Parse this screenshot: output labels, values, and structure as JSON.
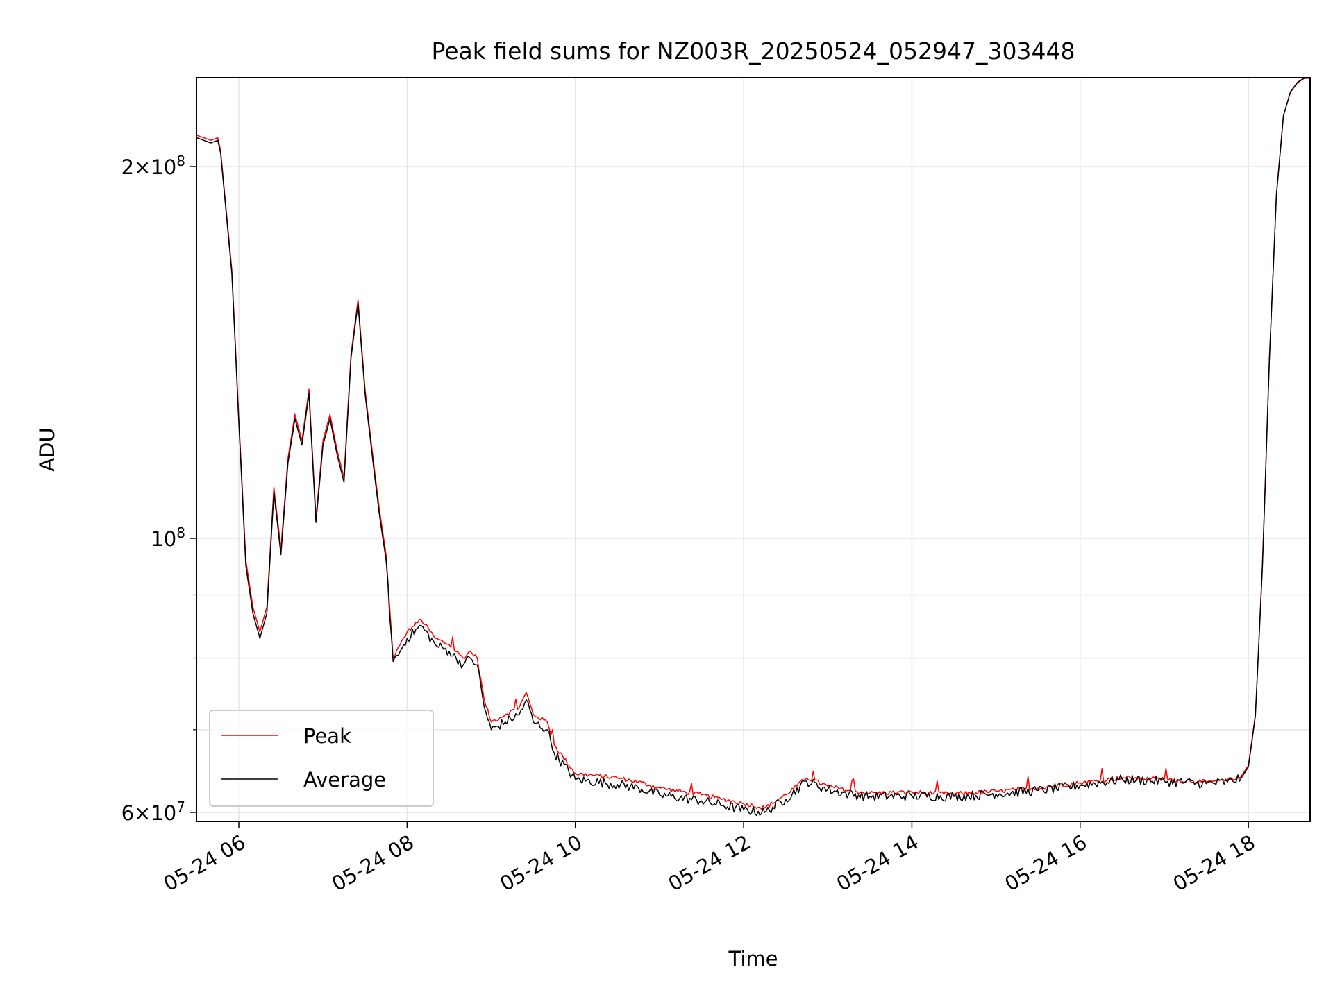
{
  "chart_data": {
    "type": "line",
    "title": "Peak field sums for NZ003R_20250524_052947_303448",
    "xlabel": "Time",
    "ylabel": "ADU",
    "yscale": "log",
    "xlim": [
      "05-24 05:29:47",
      "05-24 18:44"
    ],
    "ylim": [
      59000000,
      236000000
    ],
    "grid": true,
    "legend": {
      "placement": "lower left"
    },
    "x_ticks": [
      "05-24 06",
      "05-24 08",
      "05-24 10",
      "05-24 12",
      "05-24 14",
      "05-24 16",
      "05-24 18"
    ],
    "y_ticks": [
      {
        "value": 60000000,
        "base": "6",
        "exp": "7"
      },
      {
        "value": 100000000,
        "base": "",
        "exp": "8"
      },
      {
        "value": 200000000,
        "base": "2",
        "exp": "8"
      }
    ],
    "x": [
      "05:30",
      "05:40",
      "05:45",
      "05:47",
      "05:55",
      "06:00",
      "06:05",
      "06:10",
      "06:15",
      "06:20",
      "06:25",
      "06:30",
      "06:35",
      "06:40",
      "06:45",
      "06:50",
      "06:55",
      "07:00",
      "07:05",
      "07:10",
      "07:15",
      "07:20",
      "07:25",
      "07:30",
      "07:35",
      "07:40",
      "07:45",
      "07:50",
      "07:55",
      "08:00",
      "08:10",
      "08:20",
      "08:30",
      "08:40",
      "08:45",
      "08:50",
      "08:55",
      "09:00",
      "09:10",
      "09:20",
      "09:25",
      "09:30",
      "09:40",
      "09:45",
      "10:00",
      "10:30",
      "10:45",
      "11:00",
      "11:30",
      "11:45",
      "12:00",
      "12:15",
      "12:30",
      "12:45",
      "13:00",
      "13:15",
      "13:30",
      "14:00",
      "14:30",
      "15:00",
      "15:30",
      "16:00",
      "16:30",
      "17:00",
      "17:30",
      "17:45",
      "17:55",
      "18:00",
      "18:05",
      "18:10",
      "18:15",
      "18:20",
      "18:25",
      "18:30",
      "18:35",
      "18:40",
      "18:44"
    ],
    "series": [
      {
        "name": "Peak",
        "color": "#ff0000",
        "values": [
          212000000,
          210000000,
          211000000,
          206000000,
          165000000,
          125000000,
          96000000,
          88000000,
          84000000,
          88000000,
          110000000,
          98000000,
          116000000,
          126000000,
          120000000,
          132000000,
          104000000,
          120000000,
          126000000,
          118000000,
          112000000,
          141000000,
          156000000,
          132000000,
          118000000,
          106000000,
          97000000,
          80000000,
          82000000,
          84000000,
          86000000,
          83000000,
          82000000,
          80000000,
          81000000,
          80000000,
          74000000,
          71000000,
          72000000,
          73000000,
          75000000,
          72000000,
          71000000,
          68000000,
          64500000,
          64000000,
          63500000,
          62800000,
          62000000,
          61500000,
          61000000,
          60500000,
          62000000,
          64000000,
          63000000,
          62500000,
          62200000,
          62300000,
          62100000,
          62400000,
          62800000,
          63400000,
          64000000,
          63800000,
          63500000,
          63700000,
          64200000,
          65500000,
          72000000,
          95000000,
          140000000,
          190000000,
          220000000,
          230000000,
          234000000,
          236000000,
          236000000
        ]
      },
      {
        "name": "Average",
        "color": "#000000",
        "values": [
          211000000,
          209000000,
          210000000,
          205000000,
          164000000,
          124000000,
          95000000,
          87000000,
          83000000,
          87000000,
          109000000,
          97000000,
          115000000,
          125000000,
          119000000,
          131000000,
          103000000,
          119000000,
          125000000,
          117000000,
          111000000,
          140000000,
          155000000,
          131000000,
          117000000,
          105000000,
          96000000,
          79500000,
          81000000,
          83000000,
          85000000,
          82000000,
          81000000,
          79000000,
          80000000,
          79000000,
          73000000,
          70000000,
          71000000,
          72000000,
          74000000,
          71000000,
          70000000,
          67000000,
          63800000,
          63200000,
          62800000,
          62000000,
          61300000,
          60800000,
          60300000,
          60000000,
          61500000,
          63600000,
          62600000,
          62100000,
          61800000,
          61900000,
          61800000,
          62100000,
          62500000,
          63100000,
          63800000,
          63600000,
          63300000,
          63500000,
          64000000,
          65300000,
          71800000,
          94800000,
          139800000,
          189800000,
          219800000,
          229800000,
          233800000,
          235800000,
          235800000
        ]
      }
    ]
  }
}
